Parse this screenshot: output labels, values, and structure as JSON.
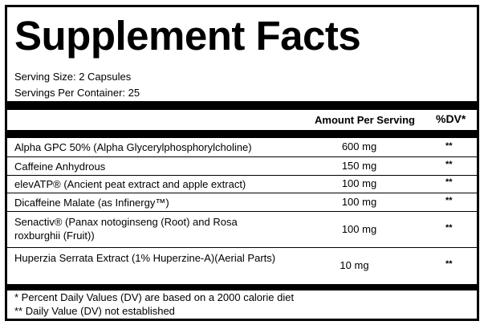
{
  "title": "Supplement Facts",
  "serving_size": "Serving Size: 2 Capsules",
  "servings_per_container": "Servings Per Container: 25",
  "headers": {
    "amount": "Amount Per Serving",
    "dv": "%DV*"
  },
  "ingredients": [
    {
      "name": "Alpha GPC 50% (Alpha Glycerylphosphorylcholine)",
      "amount": "600 mg",
      "dv": "**"
    },
    {
      "name": "Caffeine Anhydrous",
      "amount": "150 mg",
      "dv": "**"
    },
    {
      "name": "elevATP® (Ancient peat extract and apple extract)",
      "amount": "100 mg",
      "dv": "**"
    },
    {
      "name": "Dicaffeine Malate (as Infinergy™)",
      "amount": "100 mg",
      "dv": "**"
    },
    {
      "name": "Senactiv® (Panax notoginseng (Root) and Rosa roxburghii (Fruit))",
      "amount": "100 mg",
      "dv": "**"
    },
    {
      "name": "Huperzia Serrata Extract (1% Huperzine-A)(Aerial Parts)",
      "amount": "10 mg",
      "dv": "**"
    }
  ],
  "footnotes": [
    "* Percent Daily Values (DV) are based on a 2000 calorie diet",
    "** Daily Value (DV) not established"
  ]
}
